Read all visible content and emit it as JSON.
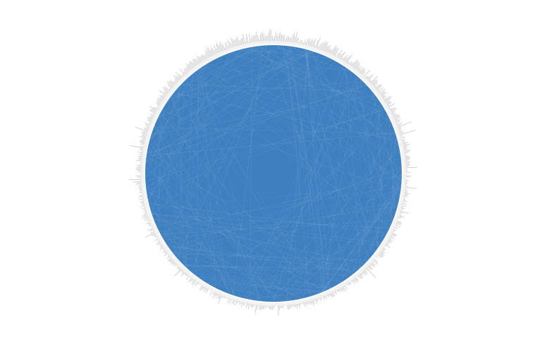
{
  "diagram": {
    "type": "circular-network",
    "colors": {
      "background": "#ffffff",
      "node_fill": "#3d7fbf",
      "edge_texture": "#9fc1e6",
      "ring": "#f2f2f2",
      "spikes": "#c8c8c8"
    }
  }
}
